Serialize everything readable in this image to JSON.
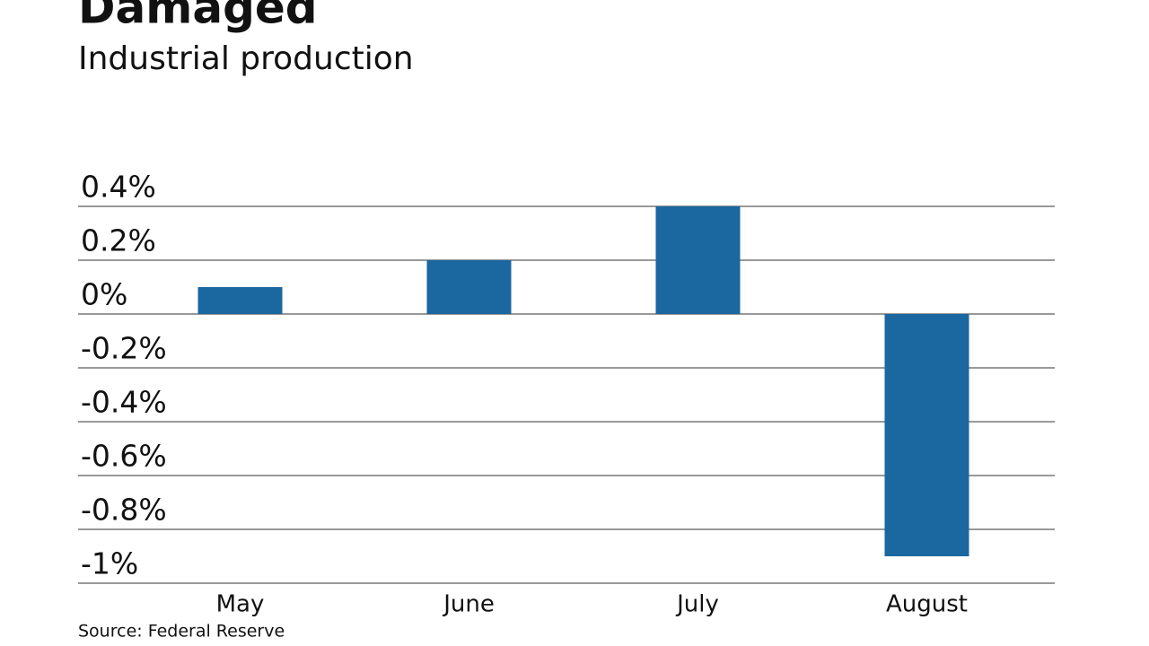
{
  "chart_data": {
    "type": "bar",
    "title": "Damaged",
    "subtitle": "Industrial production",
    "categories": [
      "May",
      "June",
      "July",
      "August"
    ],
    "values": [
      0.1,
      0.2,
      0.4,
      -0.9
    ],
    "color": "#1b67a0",
    "ylim": [
      -1,
      0.4
    ],
    "yticks": [
      {
        "value": 0.4,
        "label": "0.4%"
      },
      {
        "value": 0.2,
        "label": "0.2%"
      },
      {
        "value": 0,
        "label": "0%"
      },
      {
        "value": -0.2,
        "label": "-0.2%"
      },
      {
        "value": -0.4,
        "label": "-0.4%"
      },
      {
        "value": -0.6,
        "label": "-0.6%"
      },
      {
        "value": -0.8,
        "label": "-0.8%"
      },
      {
        "value": -1,
        "label": "-1%"
      }
    ],
    "grid": true,
    "source": "Source: Federal Reserve"
  }
}
